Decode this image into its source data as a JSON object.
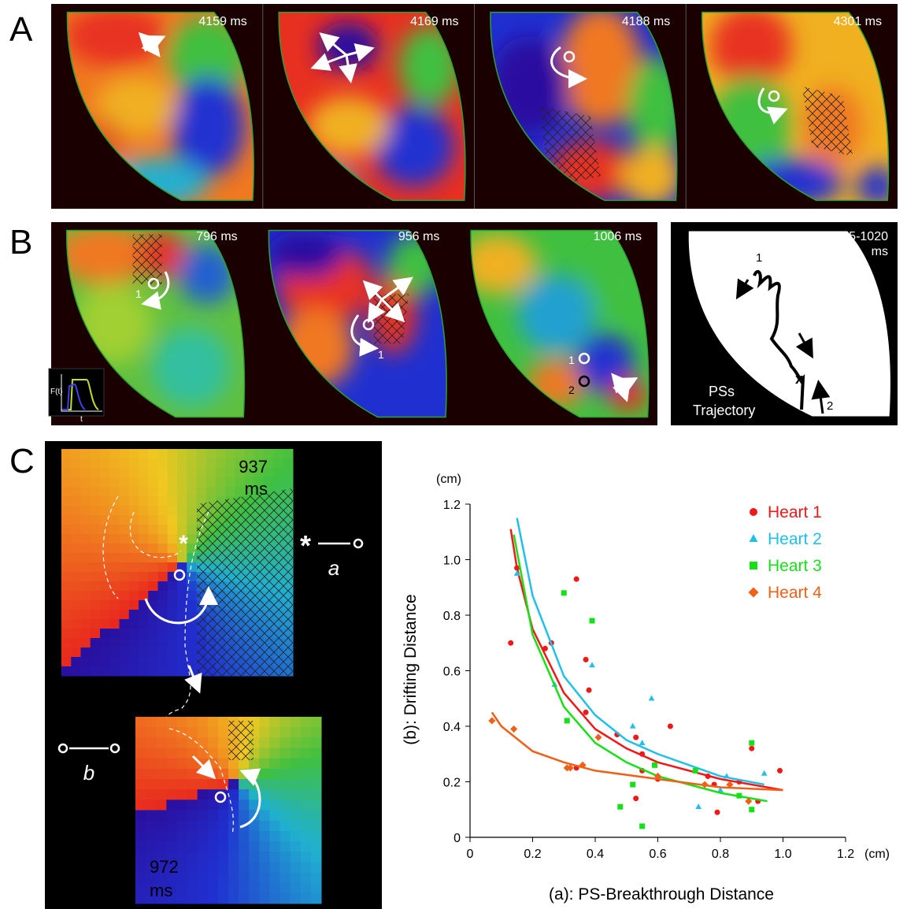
{
  "figure": {
    "panel_a": {
      "label": "A",
      "frames": [
        "4159 ms",
        "4169 ms",
        "4188 ms",
        "4301 ms"
      ]
    },
    "panel_b": {
      "label": "B",
      "frames": [
        "796 ms",
        "956 ms",
        "1006 ms"
      ],
      "pointer_labels": [
        "1",
        "1",
        "1",
        "2"
      ],
      "inset": {
        "y_label": "F(t)",
        "x_label": "t"
      },
      "trajectory": {
        "time": [
          "615-1020",
          "ms"
        ],
        "caption": [
          "PSs",
          "Trajectory"
        ],
        "marks": [
          "1",
          "2",
          "x"
        ]
      }
    },
    "panel_c": {
      "label": "C",
      "frames": [
        [
          "937",
          "ms"
        ],
        [
          "972",
          "ms"
        ]
      ],
      "symbols": {
        "star": "*",
        "a": "a",
        "b": "b"
      }
    }
  },
  "chart_data": {
    "type": "scatter",
    "x_label": "(a): PS-Breakthrough Distance",
    "y_label": "(b): Drifting Distance",
    "x_unit": "(cm)",
    "y_unit": "(cm)",
    "xlim": [
      0,
      1.2
    ],
    "xticks": [
      0,
      0.2,
      0.4,
      0.6,
      0.8,
      {
        "value": 1,
        "label": "1.0"
      },
      1.2
    ],
    "ylim": [
      0,
      1.2
    ],
    "yticks": [
      0,
      0.2,
      0.4,
      0.6,
      0.8,
      {
        "value": 1,
        "label": "1.0"
      },
      1.2
    ],
    "legend": "upper right",
    "series": [
      {
        "name": "Heart 1",
        "color": "#f01818",
        "marker": "circle",
        "x": [
          0.13,
          0.15,
          0.24,
          0.26,
          0.34,
          0.37,
          0.38,
          0.37,
          0.34,
          0.47,
          0.53,
          0.55,
          0.55,
          0.6,
          0.64,
          0.53,
          0.78,
          0.79,
          0.76,
          0.86,
          0.9,
          0.92,
          0.99
        ],
        "values": [
          0.7,
          0.97,
          0.68,
          0.7,
          0.93,
          0.64,
          0.53,
          0.45,
          0.25,
          0.37,
          0.36,
          0.3,
          0.24,
          0.21,
          0.4,
          0.14,
          0.19,
          0.09,
          0.22,
          0.2,
          0.32,
          0.13,
          0.24
        ],
        "fit": {
          "x": [
            0.13,
            0.15,
            0.2,
            0.3,
            0.4,
            0.5,
            0.6,
            0.8,
            1.0
          ],
          "values": [
            1.11,
            0.97,
            0.75,
            0.52,
            0.39,
            0.32,
            0.27,
            0.21,
            0.17
          ]
        }
      },
      {
        "name": "Heart 2",
        "color": "#20c0e8",
        "marker": "triangle",
        "x": [
          0.15,
          0.27,
          0.39,
          0.52,
          0.58,
          0.55,
          0.73,
          0.82,
          0.94,
          0.8
        ],
        "values": [
          0.95,
          0.55,
          0.62,
          0.4,
          0.5,
          0.34,
          0.11,
          0.22,
          0.23,
          0.17
        ],
        "fit": {
          "x": [
            0.15,
            0.2,
            0.3,
            0.4,
            0.5,
            0.6,
            0.8,
            0.94
          ],
          "values": [
            1.15,
            0.87,
            0.58,
            0.44,
            0.35,
            0.3,
            0.22,
            0.19
          ]
        }
      },
      {
        "name": "Heart 3",
        "color": "#18e018",
        "marker": "square",
        "x": [
          0.3,
          0.39,
          0.31,
          0.52,
          0.48,
          0.55,
          0.59,
          0.72,
          0.9,
          0.9,
          0.86
        ],
        "values": [
          0.88,
          0.78,
          0.42,
          0.19,
          0.11,
          0.04,
          0.26,
          0.24,
          0.34,
          0.1,
          0.15
        ],
        "fit": {
          "x": [
            0.14,
            0.2,
            0.3,
            0.4,
            0.5,
            0.6,
            0.8,
            0.95
          ],
          "values": [
            1.09,
            0.73,
            0.47,
            0.34,
            0.27,
            0.22,
            0.16,
            0.13
          ]
        }
      },
      {
        "name": "Heart 4",
        "color": "#f06018",
        "marker": "diamond",
        "x": [
          0.07,
          0.14,
          0.31,
          0.32,
          0.41,
          0.36,
          0.6,
          0.75,
          0.83,
          0.89
        ],
        "values": [
          0.42,
          0.39,
          0.25,
          0.25,
          0.36,
          0.26,
          0.22,
          0.19,
          0.19,
          0.13
        ],
        "fit": {
          "x": [
            0.07,
            0.1,
            0.2,
            0.3,
            0.4,
            0.6,
            0.8,
            1.0
          ],
          "values": [
            0.45,
            0.4,
            0.31,
            0.27,
            0.24,
            0.21,
            0.18,
            0.17
          ]
        }
      }
    ]
  }
}
